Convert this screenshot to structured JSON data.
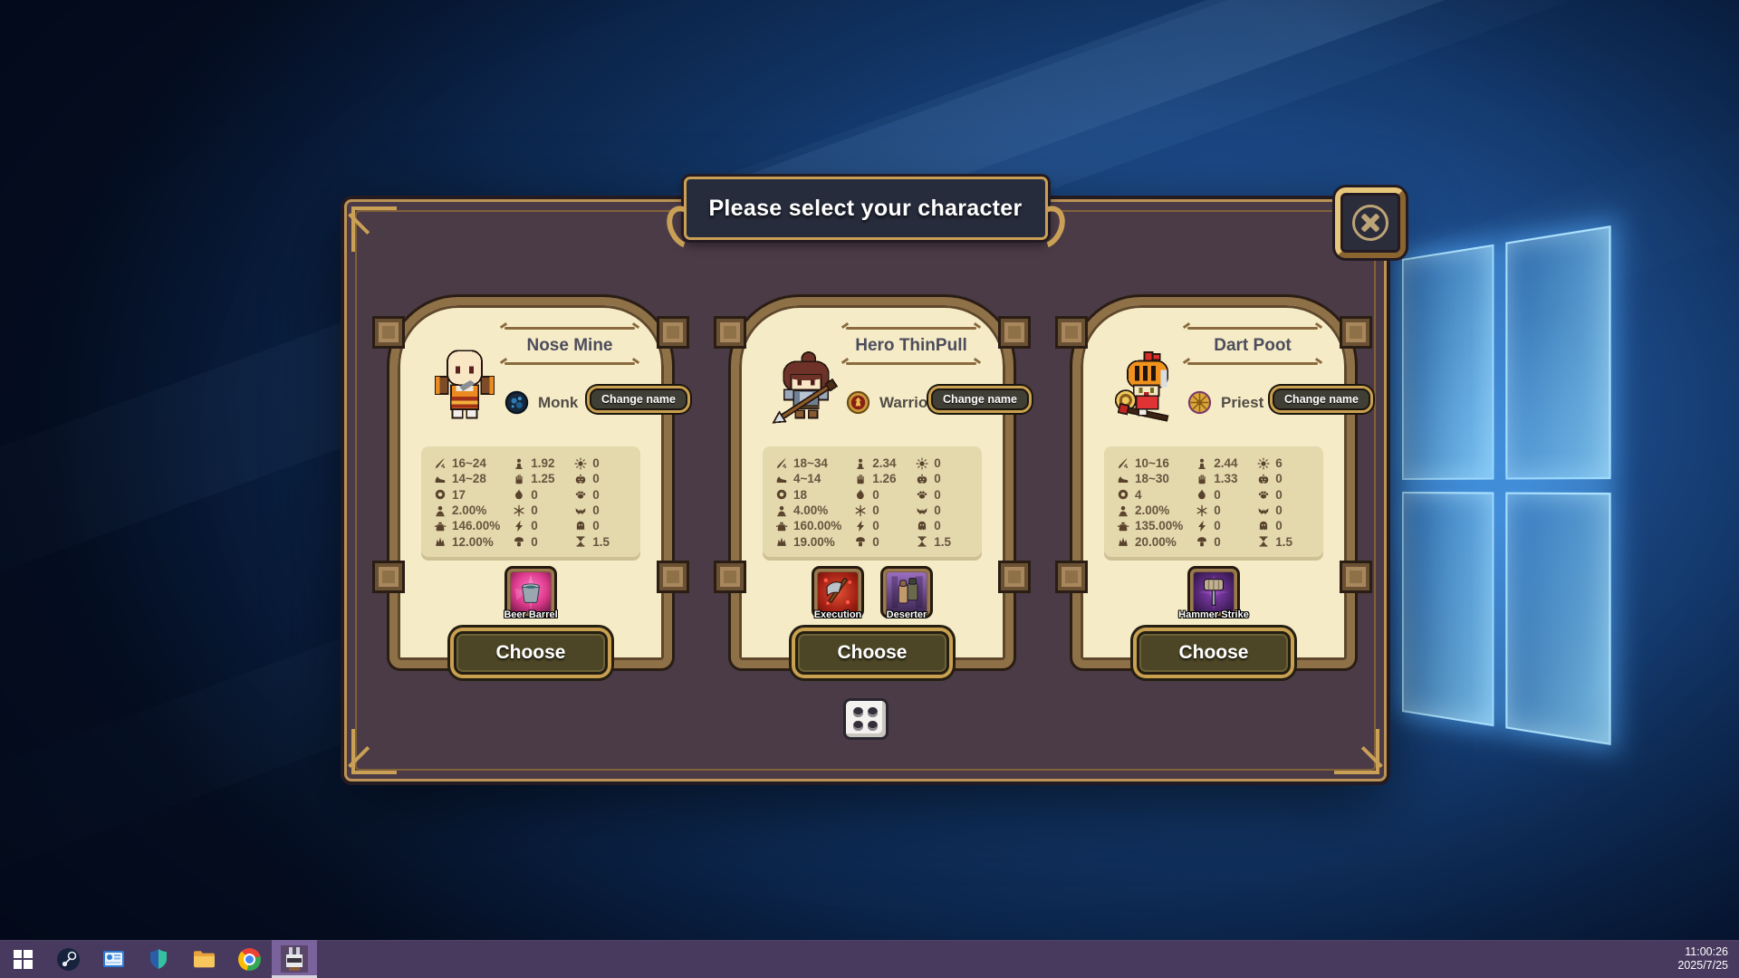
{
  "dialog": {
    "title": "Please select your character",
    "labels": {
      "change_name": "Change name",
      "choose": "Choose"
    },
    "stat_icons": {
      "col1": [
        "sword-icon",
        "shoe-icon",
        "ring-icon",
        "bust-icon",
        "pot-icon",
        "claw-icon"
      ],
      "col2": [
        "statue-icon",
        "antler-icon",
        "flame-icon",
        "snowflake-icon",
        "lightning-icon",
        "mushroom-icon"
      ],
      "col3": [
        "sun-icon",
        "pumpkin-icon",
        "paw-icon",
        "bat-icon",
        "ghost-icon",
        "hourglass-icon"
      ]
    },
    "characters": [
      {
        "name": "Nose Mine",
        "class": "Monk",
        "skills": [
          {
            "name": "Beer Barrel"
          }
        ],
        "stats": {
          "col1": [
            "16~24",
            "14~28",
            "17",
            "2.00%",
            "146.00%",
            "12.00%"
          ],
          "col2": [
            "1.92",
            "1.25",
            "0",
            "0",
            "0",
            "0"
          ],
          "col3": [
            "0",
            "0",
            "0",
            "0",
            "0",
            "1.5"
          ]
        }
      },
      {
        "name": "Hero ThinPull",
        "class": "Warrior",
        "skills": [
          {
            "name": "Execution"
          },
          {
            "name": "Deserter"
          }
        ],
        "stats": {
          "col1": [
            "18~34",
            "4~14",
            "18",
            "4.00%",
            "160.00%",
            "19.00%"
          ],
          "col2": [
            "2.34",
            "1.26",
            "0",
            "0",
            "0",
            "0"
          ],
          "col3": [
            "0",
            "0",
            "0",
            "0",
            "0",
            "1.5"
          ]
        }
      },
      {
        "name": "Dart Poot",
        "class": "Priest",
        "skills": [
          {
            "name": "Hammer Strike"
          }
        ],
        "stats": {
          "col1": [
            "10~16",
            "18~30",
            "4",
            "2.00%",
            "135.00%",
            "20.00%"
          ],
          "col2": [
            "2.44",
            "1.33",
            "0",
            "0",
            "0",
            "0"
          ],
          "col3": [
            "6",
            "0",
            "0",
            "0",
            "0",
            "1.5"
          ]
        }
      }
    ],
    "close_icon": "circled-x",
    "dice_icon": "dice-four"
  },
  "taskbar": {
    "time": "11:00:26",
    "date": "2025/7/25",
    "icons": [
      {
        "name": "start"
      },
      {
        "name": "steam"
      },
      {
        "name": "pc-settings"
      },
      {
        "name": "security-shield"
      },
      {
        "name": "file-explorer"
      },
      {
        "name": "chrome"
      },
      {
        "name": "pixel-game",
        "active": true
      }
    ]
  },
  "colors": {
    "dialog_bg": "#4b3b46",
    "frame_gold": "#c9a050",
    "card_bg": "#f5ebc6",
    "stats_bg": "#e4d8ad",
    "taskbar": "#473a5e",
    "taskbar_active": "#7a639c",
    "banner_bg": "#272c3c"
  }
}
